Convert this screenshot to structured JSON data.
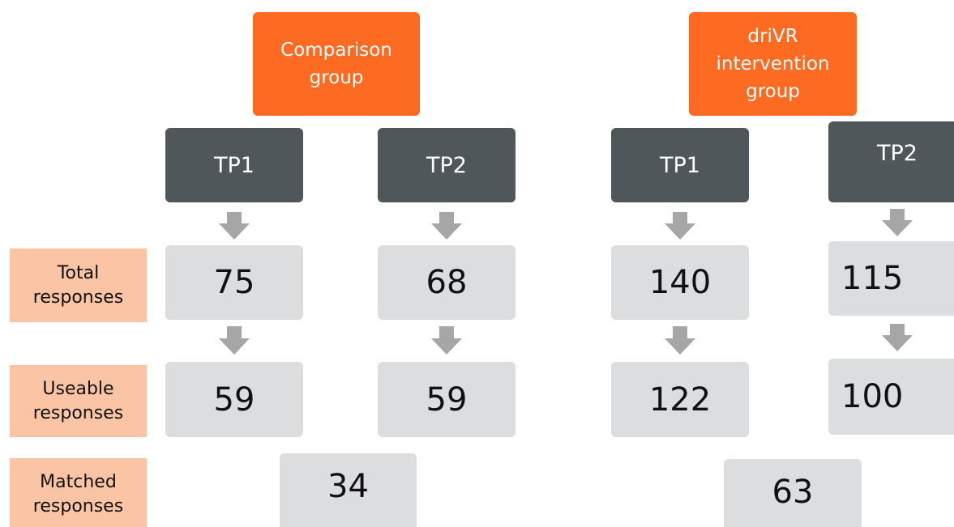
{
  "row_labels": [
    "Total responses",
    "Useable responses",
    "Matched responses"
  ],
  "groups": [
    {
      "label": "Comparison group",
      "timepoints": [
        {
          "label": "TP1",
          "total": 75,
          "useable": 59
        },
        {
          "label": "TP2",
          "total": 68,
          "useable": 59
        }
      ],
      "matched": 34
    },
    {
      "label": "driVR intervention group",
      "timepoints": [
        {
          "label": "TP1",
          "total": 140,
          "useable": 122
        },
        {
          "label": "TP2",
          "total": 115,
          "useable": 100
        }
      ],
      "matched": 63
    }
  ]
}
